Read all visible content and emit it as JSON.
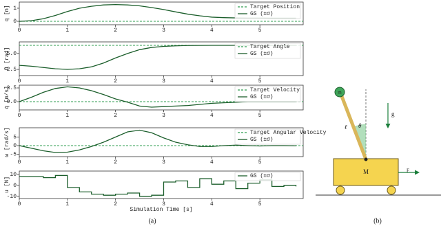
{
  "chart_data": [
    {
      "type": "line",
      "ylabel": "q [m]",
      "x": [
        0,
        0.25,
        0.5,
        0.75,
        1,
        1.25,
        1.5,
        1.75,
        2,
        2.25,
        2.5,
        2.75,
        3,
        3.25,
        3.5,
        3.75,
        4,
        4.25,
        4.5,
        4.75,
        5,
        5.25,
        5.5,
        5.75
      ],
      "xlim": [
        0,
        5.9
      ],
      "xticks": [
        0,
        1,
        2,
        3,
        4,
        5
      ],
      "ylim": [
        -0.26,
        1.47
      ],
      "yticks": [
        0,
        1
      ],
      "legend": "upper right",
      "target": {
        "name": "Target Position",
        "value": 0,
        "color": "#2e9e4f"
      },
      "series": [
        {
          "name": "GS (±σ)",
          "color": "#1b5e2b",
          "values": [
            0,
            0.05,
            0.2,
            0.45,
            0.75,
            1.0,
            1.15,
            1.25,
            1.28,
            1.25,
            1.18,
            1.05,
            0.9,
            0.72,
            0.55,
            0.42,
            0.32,
            0.28,
            0.26,
            0.25,
            0.25,
            0.24,
            0.24,
            0.24
          ]
        }
      ]
    },
    {
      "type": "line",
      "ylabel": "θ [rad]",
      "x": [
        0,
        0.25,
        0.5,
        0.75,
        1,
        1.25,
        1.5,
        1.75,
        2,
        2.25,
        2.5,
        2.75,
        3,
        3.25,
        3.5,
        3.75,
        4,
        4.25,
        4.5,
        4.75,
        5,
        5.25,
        5.5,
        5.75
      ],
      "xlim": [
        0,
        5.9
      ],
      "xticks": [
        0,
        1,
        2,
        3,
        4,
        5
      ],
      "ylim": [
        1.53,
        6.82
      ],
      "yticks": [
        2.5,
        {
          "value": 5,
          "label": "5.0"
        }
      ],
      "legend": "upper right",
      "target": {
        "name": "Target Angle",
        "value": 6.28,
        "color": "#2e9e4f"
      },
      "series": [
        {
          "name": "GS (±σ)",
          "color": "#1b5e2b",
          "values": [
            3.14,
            3.0,
            2.8,
            2.6,
            2.5,
            2.6,
            2.9,
            3.5,
            4.3,
            5.0,
            5.6,
            5.95,
            6.12,
            6.2,
            6.25,
            6.27,
            6.28,
            6.28,
            6.28,
            6.28,
            6.28,
            6.28,
            6.28,
            6.28
          ]
        }
      ]
    },
    {
      "type": "line",
      "ylabel": "q̇ [m/s]",
      "x": [
        0,
        0.25,
        0.5,
        0.75,
        1,
        1.25,
        1.5,
        1.75,
        2,
        2.25,
        2.5,
        2.75,
        3,
        3.25,
        3.5,
        3.75,
        4,
        4.25,
        4.5,
        4.75,
        5,
        5.25,
        5.5,
        5.75
      ],
      "xlim": [
        0,
        5.9
      ],
      "xticks": [
        0,
        1,
        2,
        3,
        4,
        5
      ],
      "ylim": [
        -1.5,
        3
      ],
      "yticks": [
        {
          "value": 0,
          "label": "0.0"
        },
        2.5
      ],
      "legend": "upper right",
      "target": {
        "name": "Target Velocity",
        "value": 0,
        "color": "#2e9e4f"
      },
      "series": [
        {
          "name": "GS (±σ)",
          "color": "#1b5e2b",
          "values": [
            0,
            0.8,
            1.7,
            2.4,
            2.7,
            2.5,
            2.0,
            1.3,
            0.5,
            -0.1,
            -0.8,
            -1.0,
            -0.9,
            -0.8,
            -0.7,
            -0.5,
            -0.3,
            -0.2,
            -0.1,
            0,
            0,
            0,
            0,
            0
          ]
        }
      ]
    },
    {
      "type": "line",
      "ylabel": "ω [rad/s]",
      "x": [
        0,
        0.25,
        0.5,
        0.75,
        1,
        1.25,
        1.5,
        1.75,
        2,
        2.25,
        2.5,
        2.75,
        3,
        3.25,
        3.5,
        3.75,
        4,
        4.25,
        4.5,
        4.75,
        5,
        5.25,
        5.5,
        5.75
      ],
      "xlim": [
        0,
        5.9
      ],
      "xticks": [
        0,
        1,
        2,
        3,
        4,
        5
      ],
      "ylim": [
        -6.4,
        10.4
      ],
      "yticks": [
        -5,
        0,
        5
      ],
      "legend": "upper right",
      "target": {
        "name": "Target Angular Velocity",
        "value": 0,
        "color": "#2e9e4f"
      },
      "series": [
        {
          "name": "GS (±σ)",
          "color": "#1b5e2b",
          "values": [
            0,
            -1.5,
            -3,
            -4,
            -3.8,
            -2.5,
            -0.5,
            2,
            5,
            8,
            9,
            7.5,
            4.5,
            2,
            0.5,
            -0.5,
            -0.5,
            0,
            0.3,
            0,
            -0.2,
            0,
            0,
            -0.1
          ]
        }
      ]
    },
    {
      "type": "step",
      "ylabel": "u [N]",
      "xlabel": "Simulation Time [s]",
      "x": [
        0,
        0.25,
        0.5,
        0.75,
        1,
        1.25,
        1.5,
        1.75,
        2,
        2.25,
        2.5,
        2.75,
        3,
        3.25,
        3.5,
        3.75,
        4,
        4.25,
        4.5,
        4.75,
        5,
        5.25,
        5.5,
        5.75
      ],
      "xlim": [
        0,
        5.9
      ],
      "xticks": [
        0,
        1,
        2,
        3,
        4,
        5
      ],
      "ylim": [
        -12,
        13
      ],
      "yticks": [
        -10,
        0,
        10
      ],
      "legend": "upper right",
      "series": [
        {
          "name": "GS (±σ)",
          "color": "#1b5e2b",
          "values": [
            8,
            8,
            7,
            9,
            -2,
            -6,
            -8,
            -9,
            -8,
            -7,
            -10,
            -9,
            3,
            4,
            -2,
            6,
            1,
            4,
            -3,
            2,
            5,
            -1,
            0,
            -1
          ]
        }
      ]
    }
  ],
  "diagram": {
    "mass": "m",
    "gravity": "g",
    "length": "ℓ",
    "angle": "θ",
    "cart": "M",
    "force": "F"
  },
  "captions": [
    "(a)",
    "(b)"
  ]
}
